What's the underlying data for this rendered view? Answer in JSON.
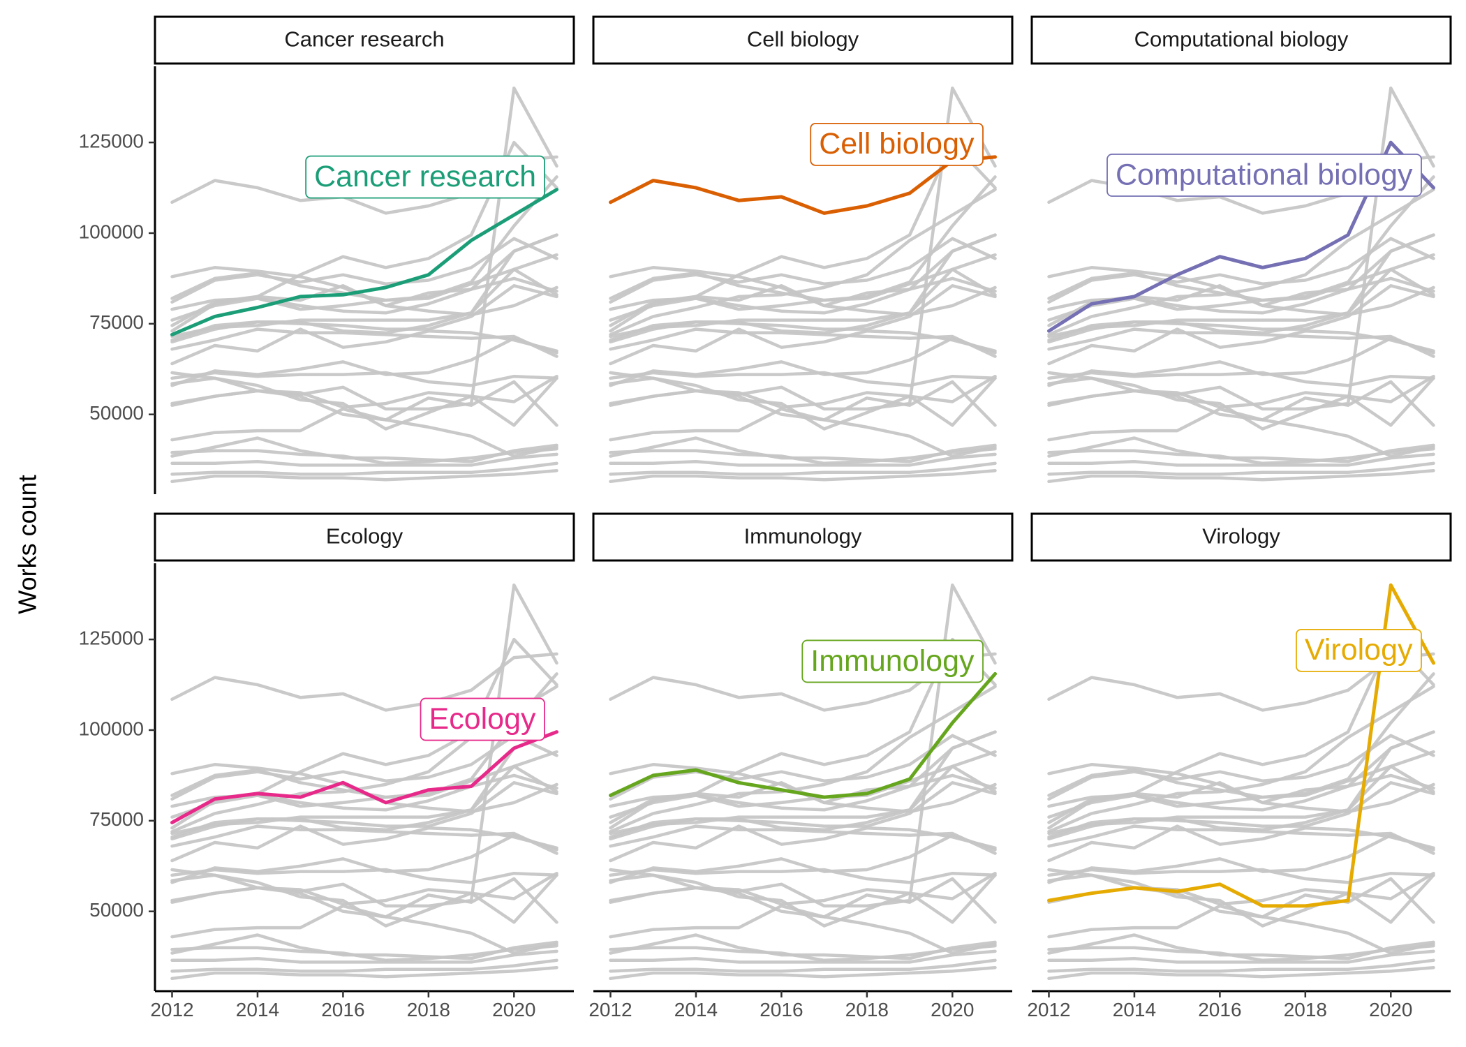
{
  "chart_data": {
    "type": "line",
    "ylabel": "Works count",
    "xlabel": "",
    "x": [
      2012,
      2013,
      2014,
      2015,
      2016,
      2017,
      2018,
      2019,
      2020,
      2021
    ],
    "xticks": [
      2012,
      2014,
      2016,
      2018,
      2020
    ],
    "yticks": [
      50000,
      75000,
      100000,
      125000
    ],
    "xlim": [
      2011.6,
      2021.4
    ],
    "ylim": [
      28000,
      146000
    ],
    "panels": [
      {
        "title": "Cancer research",
        "highlight": "Cancer research",
        "color": "#1b9e77"
      },
      {
        "title": "Cell biology",
        "highlight": "Cell biology",
        "color": "#d95f02"
      },
      {
        "title": "Computational biology",
        "highlight": "Computational biology",
        "color": "#7570b3"
      },
      {
        "title": "Ecology",
        "highlight": "Ecology",
        "color": "#e7298a"
      },
      {
        "title": "Immunology",
        "highlight": "Immunology",
        "color": "#66a61e"
      },
      {
        "title": "Virology",
        "highlight": "Virology",
        "color": "#e6ab02"
      }
    ],
    "background_color": "#c6c6c6",
    "series": [
      {
        "name": "Cancer research",
        "values": [
          72000,
          77000,
          79500,
          82500,
          83000,
          85000,
          88500,
          98000,
          105000,
          112000
        ]
      },
      {
        "name": "Cell biology",
        "values": [
          108500,
          114500,
          112500,
          109000,
          110000,
          105500,
          107500,
          111000,
          120000,
          121000
        ]
      },
      {
        "name": "Computational biology",
        "values": [
          73000,
          80500,
          82500,
          88500,
          93500,
          90500,
          93000,
          99500,
          125000,
          112500
        ]
      },
      {
        "name": "Ecology",
        "values": [
          74500,
          81000,
          82500,
          81500,
          85500,
          80000,
          83500,
          84500,
          95000,
          99500
        ]
      },
      {
        "name": "Immunology",
        "values": [
          82000,
          87500,
          89000,
          85500,
          83500,
          81500,
          82500,
          86500,
          102000,
          115500
        ]
      },
      {
        "name": "Virology",
        "values": [
          53000,
          55000,
          56500,
          55500,
          57500,
          51500,
          51500,
          53000,
          140000,
          118500
        ]
      },
      {
        "name": "",
        "values": [
          88000,
          90500,
          89500,
          88000,
          85000,
          80000,
          78500,
          77500,
          80000,
          85000
        ]
      },
      {
        "name": "",
        "values": [
          81000,
          87000,
          88500,
          86500,
          88500,
          86000,
          87000,
          90500,
          98500,
          93000
        ]
      },
      {
        "name": "",
        "values": [
          70000,
          73500,
          75500,
          75500,
          73000,
          72500,
          74500,
          78000,
          90000,
          94000
        ]
      },
      {
        "name": "",
        "values": [
          70500,
          74500,
          75500,
          75000,
          74500,
          73500,
          73500,
          77000,
          85500,
          82500
        ]
      },
      {
        "name": "",
        "values": [
          76000,
          80000,
          82000,
          79000,
          80000,
          81500,
          82000,
          86000,
          90000,
          83000
        ]
      },
      {
        "name": "",
        "values": [
          79000,
          81500,
          82000,
          80000,
          78500,
          78000,
          80500,
          84500,
          87500,
          84000
        ]
      },
      {
        "name": "",
        "values": [
          71500,
          74000,
          74500,
          76000,
          76000,
          76000,
          76000,
          78000,
          95000,
          99500
        ]
      },
      {
        "name": "",
        "values": [
          64000,
          69000,
          67500,
          73500,
          68500,
          70000,
          73000,
          72500,
          70500,
          67500
        ]
      },
      {
        "name": "",
        "values": [
          68000,
          70500,
          73500,
          72500,
          72500,
          72000,
          71500,
          71000,
          71500,
          66000
        ]
      },
      {
        "name": "",
        "values": [
          58000,
          62000,
          61000,
          62500,
          64500,
          61000,
          61500,
          65000,
          71000,
          67000
        ]
      },
      {
        "name": "",
        "values": [
          60000,
          61500,
          60500,
          61000,
          61000,
          61500,
          59000,
          58000,
          60500,
          60000
        ]
      },
      {
        "name": "",
        "values": [
          61500,
          60000,
          58000,
          54000,
          53000,
          46000,
          50500,
          55000,
          47000,
          60000
        ]
      },
      {
        "name": "",
        "values": [
          58500,
          60000,
          56500,
          55000,
          50000,
          48500,
          54500,
          52500,
          59000,
          47000
        ]
      },
      {
        "name": "",
        "values": [
          52500,
          55000,
          56500,
          56000,
          52000,
          53000,
          56000,
          55000,
          53500,
          60500
        ]
      },
      {
        "name": "",
        "values": [
          43000,
          45000,
          45500,
          45500,
          51500,
          48500,
          46500,
          44000,
          38500,
          41000
        ]
      },
      {
        "name": "",
        "values": [
          38500,
          41000,
          43500,
          40000,
          38000,
          38000,
          37500,
          37000,
          40000,
          41500
        ]
      },
      {
        "name": "",
        "values": [
          39500,
          40000,
          40000,
          39000,
          38500,
          36500,
          37000,
          38000,
          39500,
          40500
        ]
      },
      {
        "name": "",
        "values": [
          36500,
          36500,
          37000,
          36000,
          36000,
          36000,
          36000,
          36000,
          38000,
          39000
        ]
      },
      {
        "name": "",
        "values": [
          33500,
          34000,
          34000,
          33500,
          33500,
          34000,
          34000,
          34000,
          35000,
          36500
        ]
      },
      {
        "name": "",
        "values": [
          31500,
          33000,
          33000,
          32500,
          32500,
          32000,
          32500,
          33000,
          33500,
          34500
        ]
      }
    ]
  }
}
